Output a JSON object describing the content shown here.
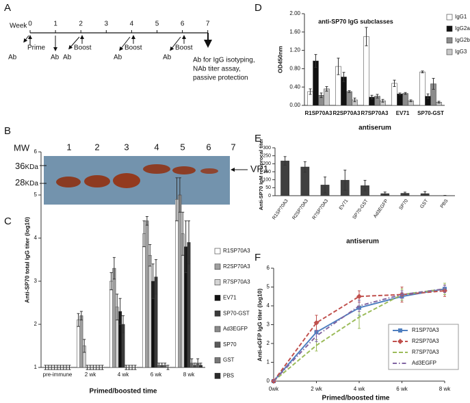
{
  "timeline": {
    "label": "A",
    "week_label": "Week",
    "weeks": [
      "0",
      "1",
      "2",
      "3",
      "4",
      "5",
      "6",
      "7"
    ],
    "events": [
      "Prime",
      "Ab",
      "Ab",
      "Boost",
      "Ab",
      "Boost",
      "Ab",
      "Boost",
      "Ab",
      "Ab for IgG isotyping,",
      "NAb titer assay,",
      "passive protection"
    ]
  },
  "blot": {
    "label": "B",
    "mw_label": "MW",
    "lanes": [
      "1",
      "2",
      "3",
      "4",
      "5",
      "6",
      "7"
    ],
    "markers": [
      "36",
      "28"
    ],
    "marker_unit": "KDa",
    "band_label": "VP1"
  },
  "chart_data": [
    {
      "type": "bar",
      "label": "C",
      "y_label": "Anti-SP70 total IgG titer (log10)",
      "x_label": "Primed/boosted time",
      "categories": [
        "pre-immune",
        "2 wk",
        "4 wk",
        "6 wk",
        "8 wk"
      ],
      "ylim": [
        1,
        6
      ],
      "yticks": [
        1,
        2,
        3,
        4,
        5,
        6
      ],
      "legend": "right",
      "series": [
        {
          "name": "R1SP70A3",
          "color": "#ffffff",
          "values": [
            1.0,
            2.1,
            3.0,
            4.1,
            4.9
          ],
          "errors": [
            0.05,
            0.15,
            0.2,
            0.3,
            0.5
          ]
        },
        {
          "name": "R2SP70A3",
          "color": "#a0a0a0",
          "values": [
            1.0,
            2.2,
            3.3,
            4.4,
            5.0
          ],
          "errors": [
            0.05,
            0.1,
            0.25,
            0.1,
            0.4
          ]
        },
        {
          "name": "R7SP70A3",
          "color": "#d4d4d4",
          "values": [
            1.0,
            1.5,
            2.4,
            3.6,
            4.1
          ],
          "errors": [
            0.05,
            0.15,
            0.3,
            0.25,
            0.5
          ]
        },
        {
          "name": "EV71",
          "color": "#111111",
          "values": [
            1.0,
            1.0,
            2.3,
            3.0,
            3.8
          ],
          "errors": [
            0.05,
            0.05,
            0.3,
            0.4,
            0.6
          ]
        },
        {
          "name": "SP70-GST",
          "color": "#3a3a3a",
          "values": [
            1.0,
            1.0,
            2.0,
            3.1,
            3.9
          ],
          "errors": [
            0.05,
            0.05,
            0.2,
            0.4,
            0.5
          ]
        },
        {
          "name": "Ad3EGFP",
          "color": "#8a8a8a",
          "values": [
            1.0,
            1.0,
            1.0,
            1.05,
            1.1
          ],
          "errors": [
            0.05,
            0.05,
            0.05,
            0.05,
            0.1
          ]
        },
        {
          "name": "SP70",
          "color": "#5a5a5a",
          "values": [
            1.0,
            1.0,
            1.0,
            1.05,
            1.05
          ],
          "errors": [
            0.05,
            0.05,
            0.05,
            0.05,
            0.05
          ]
        },
        {
          "name": "GST",
          "color": "#777777",
          "values": [
            1.0,
            1.0,
            1.0,
            1.05,
            1.1
          ],
          "errors": [
            0.05,
            0.05,
            0.05,
            0.05,
            0.1
          ]
        },
        {
          "name": "PBS",
          "color": "#2a2a2a",
          "values": [
            1.0,
            1.0,
            1.0,
            1.0,
            1.05
          ],
          "errors": [
            0.05,
            0.05,
            0.05,
            0.05,
            0.05
          ]
        }
      ]
    },
    {
      "type": "bar",
      "label": "D",
      "title": "anti-SP70  IgG subclasses",
      "y_label": "OD450nm",
      "x_label": "antiserum",
      "categories": [
        "R1SP70A3",
        "R2SP70A3",
        "R7SP70A3",
        "EV71",
        "SP70-GST"
      ],
      "ylim": [
        0,
        2
      ],
      "yticks": [
        {
          "value": 0,
          "label": "0.00"
        },
        {
          "value": 0.4,
          "label": "0.40"
        },
        {
          "value": 0.8,
          "label": "0.80"
        },
        {
          "value": 1.2,
          "label": "1.20"
        },
        {
          "value": 1.6,
          "label": "1.60"
        },
        {
          "value": 2,
          "label": "2.00"
        }
      ],
      "legend": "upper right",
      "series": [
        {
          "name": "IgG1",
          "color": "#ffffff",
          "values": [
            0.3,
            0.85,
            1.5,
            0.48,
            0.73
          ],
          "errors": [
            0.06,
            0.18,
            0.2,
            0.07,
            0.02
          ]
        },
        {
          "name": "IgG2a",
          "color": "#111111",
          "values": [
            0.97,
            0.62,
            0.18,
            0.25,
            0.2
          ],
          "errors": [
            0.14,
            0.1,
            0.04,
            0.02,
            0.05
          ]
        },
        {
          "name": "IgG2b",
          "color": "#8c8c8c",
          "values": [
            0.22,
            0.3,
            0.2,
            0.26,
            0.47
          ],
          "errors": [
            0.05,
            0.02,
            0.04,
            0.02,
            0.12
          ]
        },
        {
          "name": "IgG3",
          "color": "#c8c8c8",
          "values": [
            0.36,
            0.12,
            0.1,
            0.1,
            0.07
          ],
          "errors": [
            0.05,
            0.04,
            0.03,
            0.02,
            0.02
          ]
        }
      ]
    },
    {
      "type": "bar",
      "label": "E",
      "y_label": "Anti-SP70 IgM reciprocal titer",
      "x_label": "antiserum",
      "categories": [
        "R1SP70A3",
        "R2SP70A3",
        "R7SP70A3",
        "EV71",
        "SP70-GST",
        "Ad3EGFP",
        "SP70",
        "GST",
        "PBS"
      ],
      "values": [
        218,
        180,
        67,
        97,
        63,
        13,
        15,
        13,
        1
      ],
      "errors": [
        27,
        33,
        50,
        63,
        33,
        10,
        7,
        13,
        1
      ],
      "color": "#404040",
      "ylim": [
        0,
        300
      ],
      "yticks": [
        0,
        50,
        100,
        150,
        200,
        250,
        300
      ]
    },
    {
      "type": "line",
      "label": "F",
      "y_label": "Anti-eGFP IgG titer (log10)",
      "x_label": "Primed/boosted time",
      "categories": [
        "0wk",
        "2 wk",
        "4 wk",
        "6 wk",
        "8 wk"
      ],
      "ylim": [
        0,
        6
      ],
      "yticks": [
        0,
        1,
        2,
        3,
        4,
        5,
        6
      ],
      "legend": "lower right",
      "series": [
        {
          "name": "R1SP70A3",
          "color": "#4f7fc0",
          "dash": "solid",
          "marker": "square",
          "values": [
            0,
            2.6,
            3.9,
            4.5,
            4.9
          ],
          "errors": [
            0,
            0.5,
            0.4,
            0.2,
            0.3
          ]
        },
        {
          "name": "R2SP70A3",
          "color": "#c0504d",
          "dash": "dashed",
          "marker": "diamond",
          "values": [
            0,
            3.1,
            4.5,
            4.6,
            4.8
          ],
          "errors": [
            0,
            0.4,
            0.3,
            0.4,
            0.3
          ]
        },
        {
          "name": "R7SP70A3",
          "color": "#9bbb59",
          "dash": "dashed",
          "marker": "none",
          "values": [
            0,
            1.9,
            3.4,
            4.6,
            4.9
          ],
          "errors": [
            0,
            0.3,
            0.6,
            0.3,
            0.3
          ]
        },
        {
          "name": "Ad3EGFP",
          "color": "#8064a2",
          "dash": "dashdot",
          "marker": "none",
          "values": [
            0,
            2.4,
            4.0,
            4.6,
            4.9
          ],
          "errors": [
            0,
            0.3,
            0.3,
            0.2,
            0.2
          ]
        }
      ]
    }
  ]
}
